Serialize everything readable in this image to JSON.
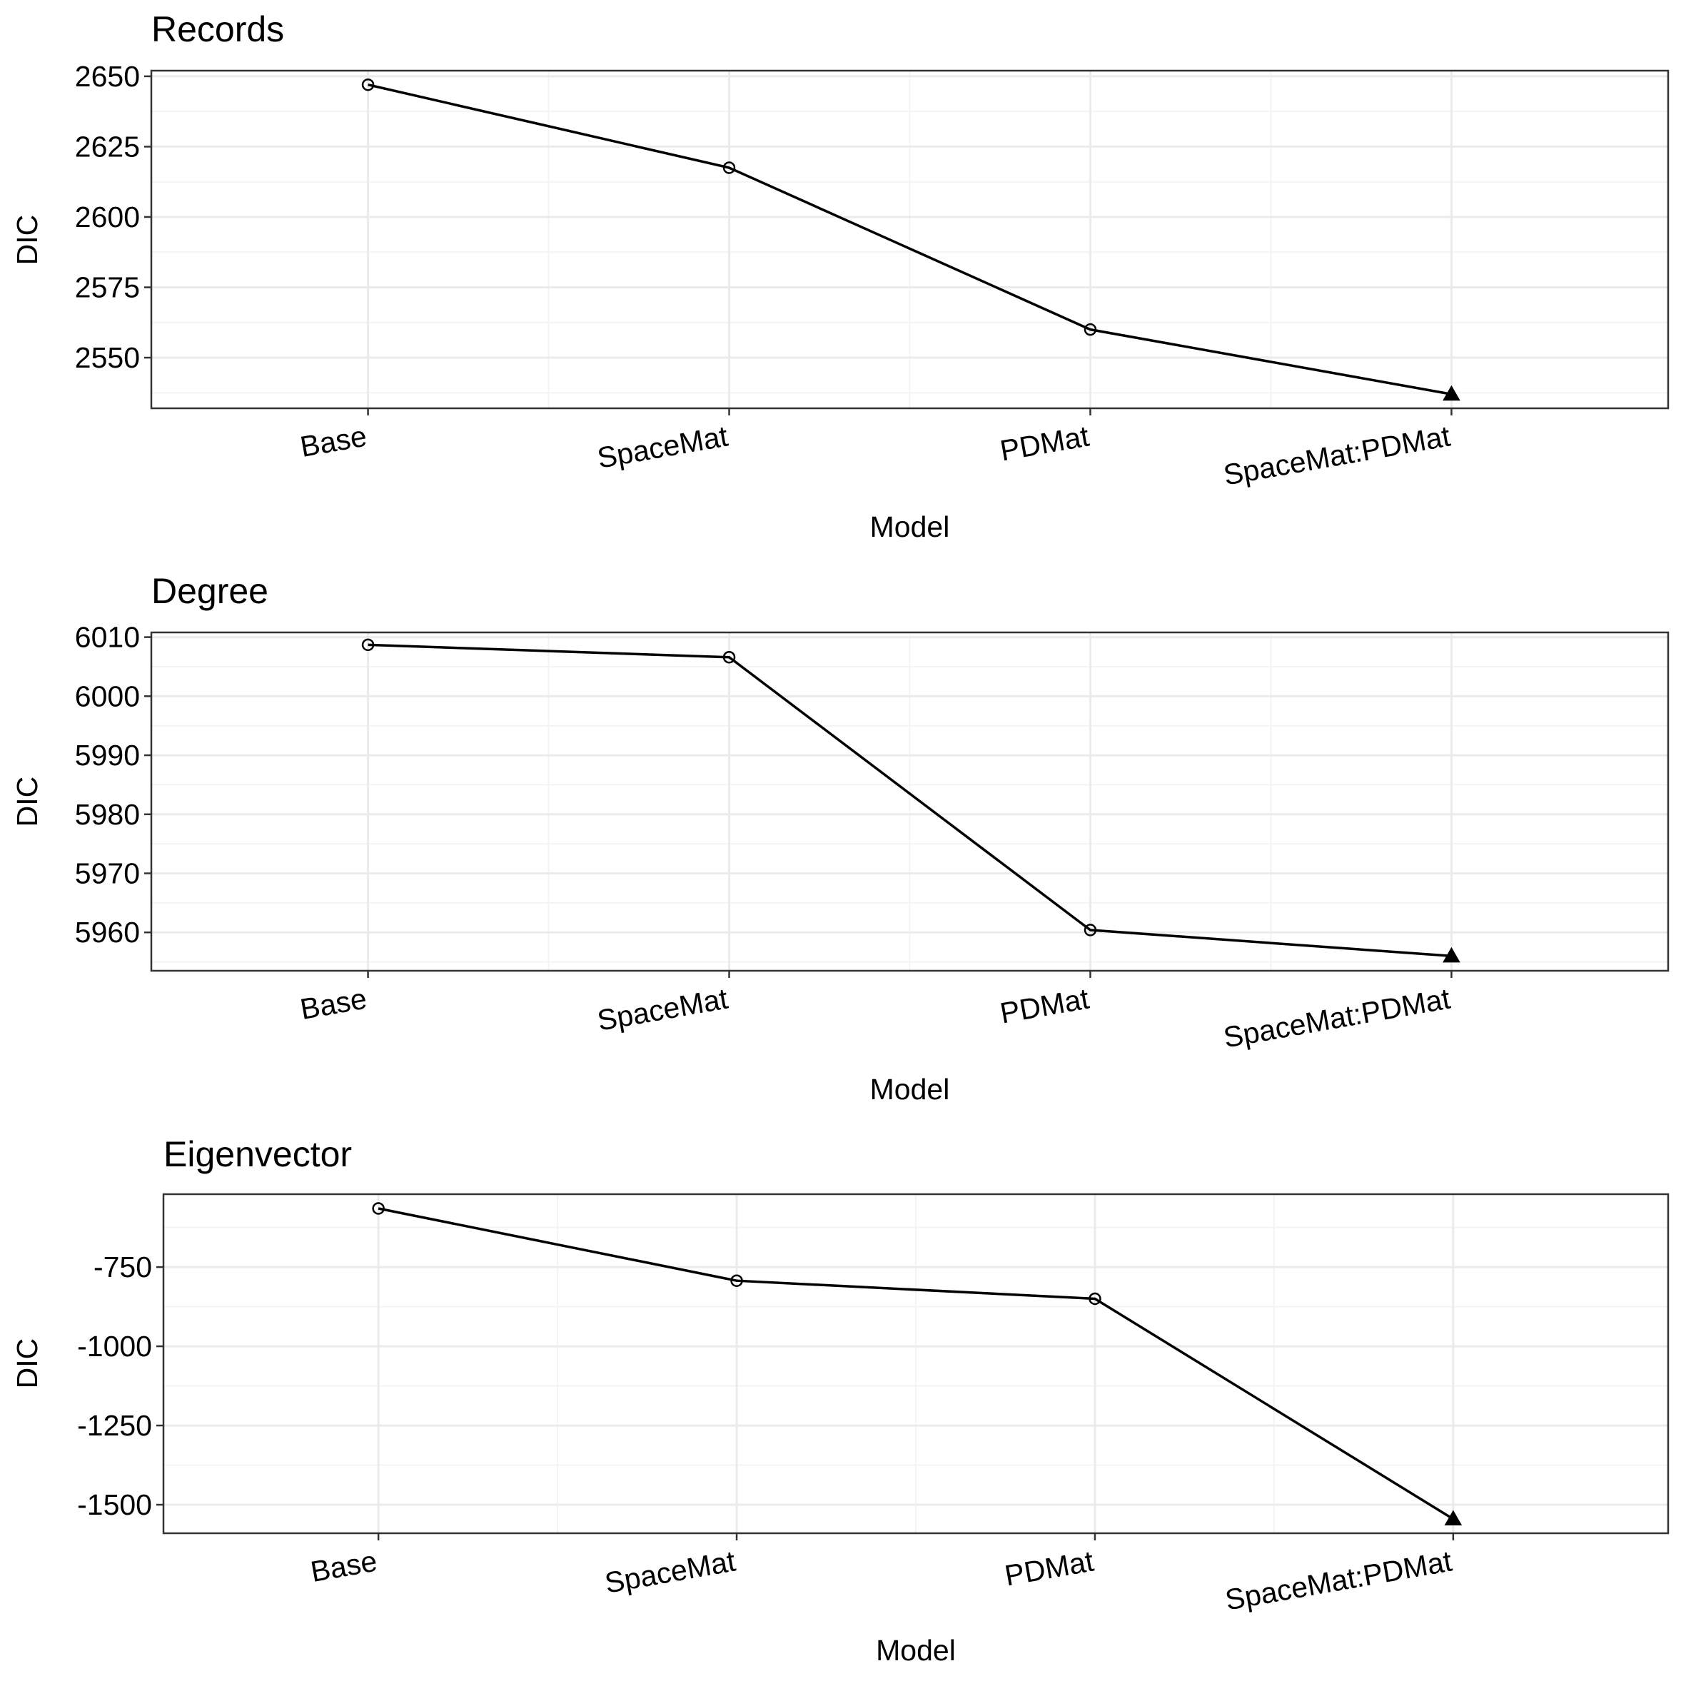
{
  "chart_data": [
    {
      "type": "line",
      "title": "Records",
      "xlabel": "Model",
      "ylabel": "DIC",
      "categories": [
        "Base",
        "SpaceMat",
        "PDMat",
        "SpaceMat:PDMat"
      ],
      "values": [
        2647,
        2617.5,
        2560,
        2537
      ],
      "markers": [
        "open-circle",
        "open-circle",
        "open-circle",
        "filled-triangle"
      ],
      "yticks": [
        2550,
        2575,
        2600,
        2625,
        2650
      ],
      "ylim": [
        2532,
        2652
      ],
      "grid": true
    },
    {
      "type": "line",
      "title": "Degree",
      "xlabel": "Model",
      "ylabel": "DIC",
      "categories": [
        "Base",
        "SpaceMat",
        "PDMat",
        "SpaceMat:PDMat"
      ],
      "values": [
        6008.7,
        6006.6,
        5960.4,
        5956
      ],
      "markers": [
        "open-circle",
        "open-circle",
        "open-circle",
        "filled-triangle"
      ],
      "yticks": [
        5960,
        5970,
        5980,
        5990,
        6000,
        6010
      ],
      "ylim": [
        5953.5,
        6010.8
      ],
      "grid": true
    },
    {
      "type": "line",
      "title": "Eigenvector",
      "xlabel": "Model",
      "ylabel": "DIC",
      "categories": [
        "Base",
        "SpaceMat",
        "PDMat",
        "SpaceMat:PDMat"
      ],
      "values": [
        -565,
        -793,
        -850,
        -1545
      ],
      "markers": [
        "open-circle",
        "open-circle",
        "open-circle",
        "filled-triangle"
      ],
      "yticks": [
        -1500,
        -1250,
        -1000,
        -750
      ],
      "ylim": [
        -1590,
        -520
      ],
      "grid": true
    }
  ],
  "colors": {
    "line": "#000000",
    "major_grid": "#ebebeb",
    "minor_grid": "#f4f4f4",
    "panel_border": "#333333",
    "background": "#ffffff"
  }
}
